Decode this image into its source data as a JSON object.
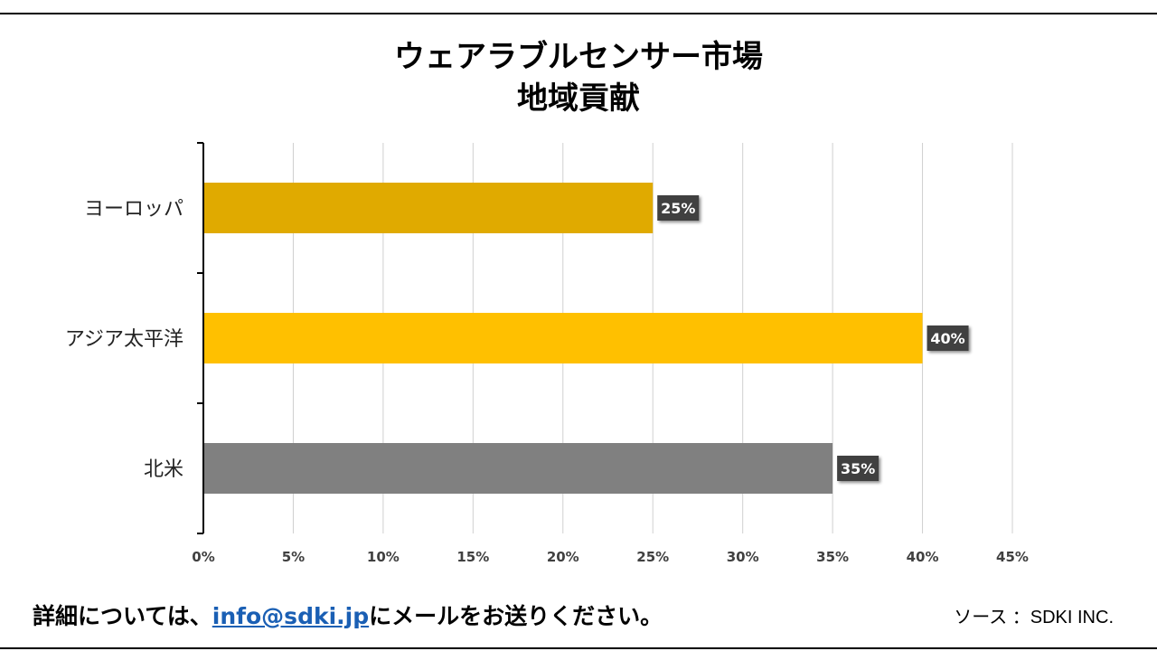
{
  "title_line1": "ウェアラブルセンサー市場",
  "title_line2": "地域貢献",
  "footer": {
    "text_before": "詳細については、",
    "email": "info@sdki.jp",
    "text_after": "にメールをお送りください。",
    "source": "ソース ：SDKI INC."
  },
  "chart_data": {
    "type": "bar",
    "orientation": "horizontal",
    "categories": [
      "ヨーロッパ",
      "アジア太平洋",
      "北米"
    ],
    "values": [
      25,
      40,
      35
    ],
    "data_labels": [
      "25%",
      "40%",
      "35%"
    ],
    "colors": [
      "#e0aa00",
      "#ffc000",
      "#808080"
    ],
    "xlim": [
      0,
      45
    ],
    "xticks": [
      "0%",
      "5%",
      "10%",
      "15%",
      "20%",
      "25%",
      "30%",
      "35%",
      "40%",
      "45%"
    ],
    "grid": true,
    "legend": "none"
  }
}
